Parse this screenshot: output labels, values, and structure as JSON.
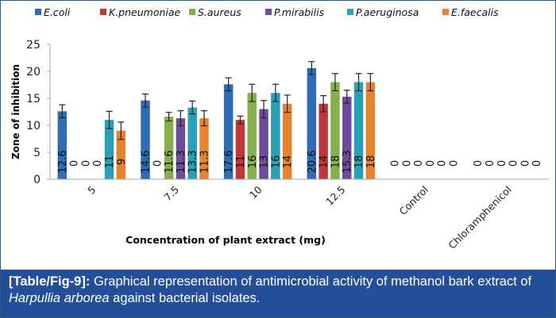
{
  "chart_data": {
    "type": "bar",
    "title": "",
    "xlabel": "Concentration of plant extract (mg)",
    "ylabel": "Zone of inhibition",
    "ylim": [
      0,
      25
    ],
    "yticks": [
      0,
      5,
      10,
      15,
      20,
      25
    ],
    "grid": false,
    "legend_position": "top",
    "categories": [
      "5",
      "7.5",
      "10",
      "12.5",
      "Control",
      "Chloramphenicol"
    ],
    "series": [
      {
        "name": "E.coli",
        "color": "#2e6db4",
        "values": [
          12.6,
          14.6,
          17.6,
          20.6,
          0,
          0
        ],
        "errors": [
          1.2,
          1.2,
          1.2,
          1.2,
          0,
          0
        ]
      },
      {
        "name": "K.pneumoniae",
        "color": "#c0373a",
        "values": [
          0,
          0,
          11,
          14,
          0,
          0
        ],
        "errors": [
          0,
          0,
          0.7,
          1.5,
          0,
          0
        ]
      },
      {
        "name": "S.aureus",
        "color": "#86b04b",
        "values": [
          0,
          11.6,
          16,
          18,
          0,
          0
        ],
        "errors": [
          0,
          0.8,
          1.6,
          1.6,
          0,
          0
        ]
      },
      {
        "name": "P.mirabilis",
        "color": "#6e4b9b",
        "values": [
          0,
          11.3,
          13,
          15.3,
          0,
          0
        ],
        "errors": [
          0,
          1.4,
          1.6,
          1.2,
          0,
          0
        ]
      },
      {
        "name": "P.aeruginosa",
        "color": "#2aa0b8",
        "values": [
          11,
          13.3,
          16,
          18,
          0,
          0
        ],
        "errors": [
          1.6,
          1.2,
          1.6,
          1.6,
          0,
          0
        ]
      },
      {
        "name": "E.faecalis",
        "color": "#e5832e",
        "values": [
          9,
          11.3,
          14,
          18,
          0,
          0
        ],
        "errors": [
          1.6,
          1.4,
          1.6,
          1.6,
          0,
          0
        ]
      }
    ]
  },
  "caption": {
    "label": "[Table/Fig-9]:",
    "text_before": " Graphical representation of antimicrobial activity of methanol bark extract of ",
    "italic": "Harpullia arborea",
    "text_after": " against bacterial isolates."
  }
}
